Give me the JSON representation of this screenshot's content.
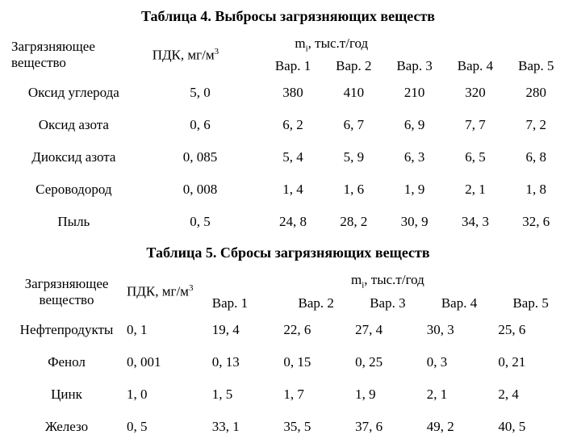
{
  "table4": {
    "title": "Таблица 4. Выбросы загрязняющих веществ",
    "header_substance": "Загрязняющее вещество",
    "header_pdk_html": "ПДК, мг/м<sup>3</sup>",
    "header_mi_html": "m<sub>i</sub>, тыс.т/год",
    "variants": [
      "Вар. 1",
      "Вар. 2",
      "Вар. 3",
      "Вар. 4",
      "Вар. 5"
    ],
    "rows": [
      {
        "substance": "Оксид углерода",
        "pdk": "5, 0",
        "vals": [
          "380",
          "410",
          "210",
          "320",
          "280"
        ]
      },
      {
        "substance": "Оксид азота",
        "pdk": "0, 6",
        "vals": [
          "6, 2",
          "6, 7",
          "6, 9",
          "7, 7",
          "7, 2"
        ]
      },
      {
        "substance": "Диоксид азота",
        "pdk": "0, 085",
        "vals": [
          "5, 4",
          "5, 9",
          "6, 3",
          "6, 5",
          "6, 8"
        ]
      },
      {
        "substance": "Сероводород",
        "pdk": "0, 008",
        "vals": [
          "1, 4",
          "1, 6",
          "1, 9",
          "2, 1",
          "1, 8"
        ]
      },
      {
        "substance": "Пыль",
        "pdk": "0, 5",
        "vals": [
          "24, 8",
          "28, 2",
          "30, 9",
          "34, 3",
          "32, 6"
        ]
      }
    ]
  },
  "table5": {
    "title": "Таблица 5. Сбросы загрязняющих веществ",
    "header_substance": "Загрязняющее вещество",
    "header_pdk_html": "ПДК, мг/м<sup>3</sup>",
    "header_mi_html": "m<sub>i</sub>, тыс.т/год",
    "variants": [
      "Вар. 1",
      "Вар. 2",
      "Вар. 3",
      "Вар. 4",
      "Вар. 5"
    ],
    "rows": [
      {
        "substance": "Нефтепродукты",
        "pdk": "0, 1",
        "vals": [
          "19, 4",
          "22, 6",
          "27, 4",
          "30, 3",
          "25, 6"
        ]
      },
      {
        "substance": "Фенол",
        "pdk": "0, 001",
        "vals": [
          "0, 13",
          "0, 15",
          "0, 25",
          "0, 3",
          "0, 21"
        ]
      },
      {
        "substance": "Цинк",
        "pdk": "1, 0",
        "vals": [
          "1, 5",
          "1, 7",
          "1, 9",
          "2, 1",
          "2, 4"
        ]
      },
      {
        "substance": "Железо",
        "pdk": "0, 5",
        "vals": [
          "33, 1",
          "35, 5",
          "37, 6",
          "49, 2",
          "40, 5"
        ]
      }
    ]
  },
  "style": {
    "font_family": "Times New Roman",
    "title_fontsize_pt": 14,
    "body_fontsize_pt": 13,
    "background_color": "#ffffff",
    "text_color": "#000000"
  }
}
